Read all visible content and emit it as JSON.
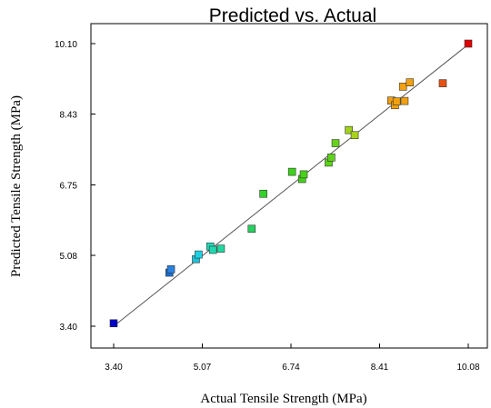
{
  "chart_data": {
    "type": "scatter",
    "title": "Predicted vs. Actual",
    "xlabel": "Actual Tensile Strength (MPa)",
    "ylabel": "Predicted Tensile Strength (MPa)",
    "xlim": [
      3.4,
      10.08
    ],
    "ylim": [
      3.4,
      10.1
    ],
    "x_ticks": [
      3.4,
      5.07,
      6.74,
      8.41,
      10.08
    ],
    "x_tick_labels": [
      "3.40",
      "5.07",
      "6.74",
      "8.41",
      "10.08"
    ],
    "y_ticks": [
      3.4,
      5.08,
      6.75,
      8.43,
      10.1
    ],
    "y_tick_labels": [
      "3.40",
      "5.08",
      "6.75",
      "8.43",
      "10.10"
    ],
    "grid": false,
    "fit_line": {
      "from": [
        3.4,
        3.4
      ],
      "to": [
        10.08,
        10.08
      ]
    },
    "points": [
      {
        "x": 3.4,
        "y": 3.47,
        "color": "#0000c8"
      },
      {
        "x": 4.45,
        "y": 4.67,
        "color": "#1a70d4"
      },
      {
        "x": 4.48,
        "y": 4.75,
        "color": "#2a82e0"
      },
      {
        "x": 4.95,
        "y": 4.99,
        "color": "#1ec0d8"
      },
      {
        "x": 5.0,
        "y": 5.1,
        "color": "#1ed0e6"
      },
      {
        "x": 5.22,
        "y": 5.29,
        "color": "#20d8b8"
      },
      {
        "x": 5.27,
        "y": 5.21,
        "color": "#20d8b0"
      },
      {
        "x": 5.42,
        "y": 5.24,
        "color": "#22d8a0"
      },
      {
        "x": 6.0,
        "y": 5.71,
        "color": "#28d060"
      },
      {
        "x": 6.22,
        "y": 6.54,
        "color": "#32d228"
      },
      {
        "x": 6.76,
        "y": 7.06,
        "color": "#3cd21a"
      },
      {
        "x": 6.95,
        "y": 6.89,
        "color": "#44d21a"
      },
      {
        "x": 6.98,
        "y": 7.0,
        "color": "#46d21a"
      },
      {
        "x": 7.45,
        "y": 7.28,
        "color": "#5ad21a"
      },
      {
        "x": 7.5,
        "y": 7.4,
        "color": "#5ed21a"
      },
      {
        "x": 7.58,
        "y": 7.74,
        "color": "#66d21a"
      },
      {
        "x": 7.83,
        "y": 8.05,
        "color": "#a0d21a"
      },
      {
        "x": 7.94,
        "y": 7.93,
        "color": "#a8d21a"
      },
      {
        "x": 8.63,
        "y": 8.75,
        "color": "#f0a010"
      },
      {
        "x": 8.7,
        "y": 8.64,
        "color": "#f0a010"
      },
      {
        "x": 8.73,
        "y": 8.73,
        "color": "#f0a010"
      },
      {
        "x": 8.85,
        "y": 9.08,
        "color": "#f0a010"
      },
      {
        "x": 8.88,
        "y": 8.74,
        "color": "#f0a010"
      },
      {
        "x": 8.98,
        "y": 9.18,
        "color": "#f0a010"
      },
      {
        "x": 9.6,
        "y": 9.16,
        "color": "#e85010"
      },
      {
        "x": 10.08,
        "y": 10.1,
        "color": "#e00000"
      }
    ]
  }
}
